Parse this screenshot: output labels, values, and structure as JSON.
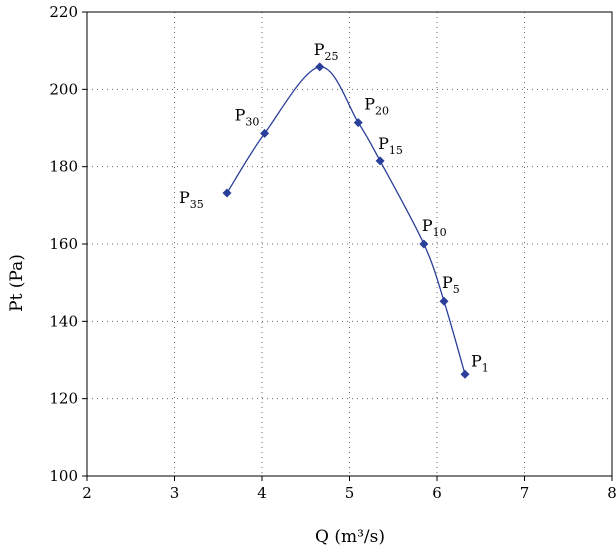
{
  "chart_data": {
    "type": "line",
    "xlabel": "Q (m³/s)",
    "ylabel": "Pt (Pa)",
    "xlim": [
      2,
      8
    ],
    "ylim": [
      100,
      220
    ],
    "xticks": [
      "2",
      "3",
      "4",
      "5",
      "6",
      "7",
      "8"
    ],
    "yticks": [
      "100",
      "120",
      "140",
      "160",
      "180",
      "200",
      "220"
    ],
    "grid": "dotted",
    "series": [
      {
        "color": "#2a3f9a",
        "marker": "diamond",
        "points": [
          {
            "label": "P",
            "sub": "35",
            "x": 3.6,
            "y": 173.2
          },
          {
            "label": "P",
            "sub": "30",
            "x": 4.03,
            "y": 188.6
          },
          {
            "label": "P",
            "sub": "25",
            "x": 4.66,
            "y": 205.8
          },
          {
            "label": "P",
            "sub": "20",
            "x": 5.1,
            "y": 191.4
          },
          {
            "label": "P",
            "sub": "15",
            "x": 5.35,
            "y": 181.5
          },
          {
            "label": "P",
            "sub": "10",
            "x": 5.85,
            "y": 160.0
          },
          {
            "label": "P",
            "sub": "5",
            "x": 6.08,
            "y": 145.2
          },
          {
            "label": "P",
            "sub": "1",
            "x": 6.32,
            "y": 126.3
          }
        ]
      }
    ]
  }
}
